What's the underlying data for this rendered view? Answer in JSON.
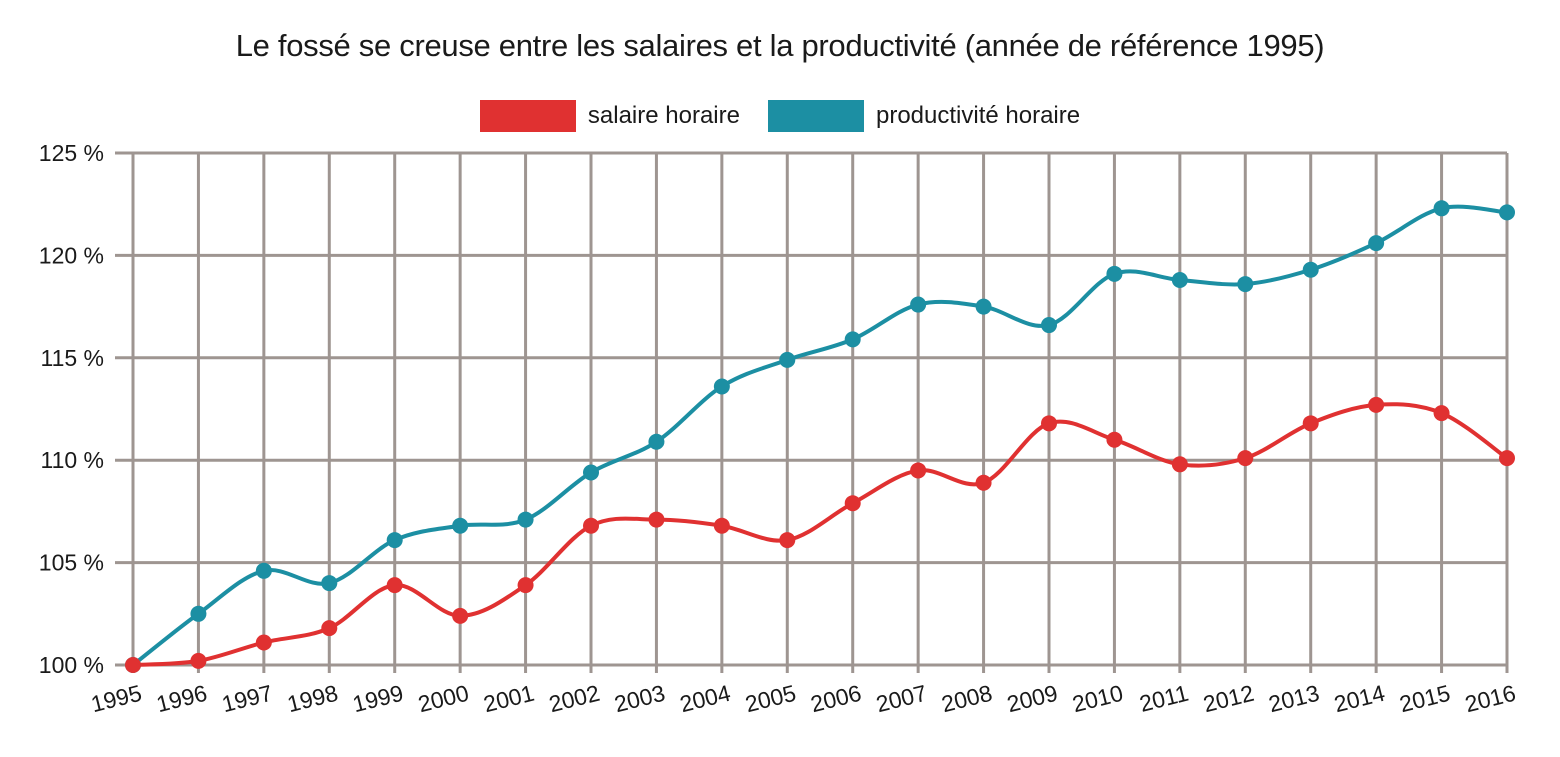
{
  "chart_data": {
    "type": "line",
    "title": "Le fossé se creuse entre les salaires et la productivité (année de référence 1995)",
    "categories": [
      "1995",
      "1996",
      "1997",
      "1998",
      "1999",
      "2000",
      "2001",
      "2002",
      "2003",
      "2004",
      "2005",
      "2006",
      "2007",
      "2008",
      "2009",
      "2010",
      "2011",
      "2012",
      "2013",
      "2014",
      "2015",
      "2016"
    ],
    "series": [
      {
        "name": "salaire horaire",
        "color": "#e03131",
        "values": [
          100.0,
          100.2,
          101.1,
          101.8,
          103.9,
          102.4,
          103.9,
          106.8,
          107.1,
          106.8,
          106.1,
          107.9,
          109.5,
          108.9,
          111.8,
          111.0,
          109.8,
          110.1,
          111.8,
          112.7,
          112.3,
          110.1
        ]
      },
      {
        "name": "productivité horaire",
        "color": "#1c8fa3",
        "values": [
          100.0,
          102.5,
          104.6,
          104.0,
          106.1,
          106.8,
          107.1,
          109.4,
          110.9,
          113.6,
          114.9,
          115.9,
          117.6,
          117.5,
          116.6,
          119.1,
          118.8,
          118.6,
          119.3,
          120.6,
          122.3,
          122.1
        ]
      }
    ],
    "ylim": [
      100,
      125
    ],
    "yticks": [
      "100 %",
      "105 %",
      "110 %",
      "115 %",
      "120 %",
      "125 %"
    ],
    "ytick_values": [
      100,
      105,
      110,
      115,
      120,
      125
    ],
    "xlabel": "",
    "ylabel": "",
    "grid": true,
    "legend_position": "top-center",
    "grid_color": "#9e9591"
  }
}
